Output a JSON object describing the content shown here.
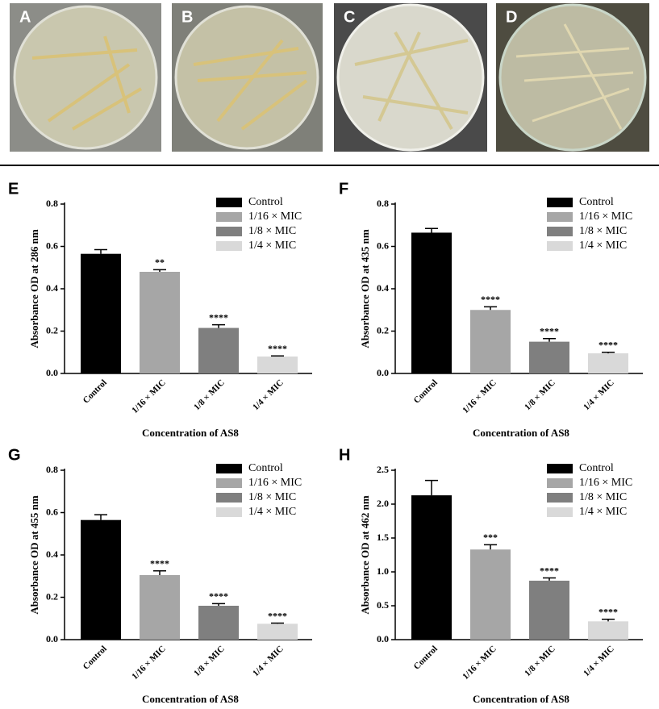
{
  "photo_panels": [
    "A",
    "B",
    "C",
    "D"
  ],
  "chart_data": [
    {
      "type": "bar",
      "panel": "E",
      "ylabel": "Absorbance OD at 286 nm",
      "xlabel": "Concentration of AS8",
      "categories": [
        "Control",
        "1/16 × MIC",
        "1/8 × MIC",
        "1/4 × MIC"
      ],
      "values": [
        0.565,
        0.48,
        0.215,
        0.08
      ],
      "errors": [
        0.02,
        0.01,
        0.015,
        0.003
      ],
      "annotations": [
        null,
        "**",
        "****",
        "****"
      ],
      "colors": [
        "#000000",
        "#a6a6a6",
        "#7f7f7f",
        "#d9d9d9"
      ],
      "ylim": [
        0,
        0.8
      ],
      "yticks": [
        {
          "value": 0,
          "label": "0.0"
        },
        0.2,
        0.4,
        0.6,
        0.8
      ],
      "legend": "upper right"
    },
    {
      "type": "bar",
      "panel": "F",
      "ylabel": "Absorbance OD at 435 nm",
      "xlabel": "Concentration of AS8",
      "categories": [
        "Control",
        "1/16 × MIC",
        "1/8 × MIC",
        "1/4 × MIC"
      ],
      "values": [
        0.665,
        0.3,
        0.15,
        0.095
      ],
      "errors": [
        0.02,
        0.015,
        0.015,
        0.005
      ],
      "annotations": [
        null,
        "****",
        "****",
        "****"
      ],
      "colors": [
        "#000000",
        "#a6a6a6",
        "#7f7f7f",
        "#d9d9d9"
      ],
      "ylim": [
        0,
        0.8
      ],
      "yticks": [
        {
          "value": 0,
          "label": "0.0"
        },
        0.2,
        0.4,
        0.6,
        0.8
      ],
      "legend": "upper right"
    },
    {
      "type": "bar",
      "panel": "G",
      "ylabel": "Absorbance OD at 455 nm",
      "xlabel": "Concentration of AS8",
      "categories": [
        "Control",
        "1/16 × MIC",
        "1/8 × MIC",
        "1/4 × MIC"
      ],
      "values": [
        0.565,
        0.305,
        0.16,
        0.075
      ],
      "errors": [
        0.025,
        0.02,
        0.01,
        0.003
      ],
      "annotations": [
        null,
        "****",
        "****",
        "****"
      ],
      "colors": [
        "#000000",
        "#a6a6a6",
        "#7f7f7f",
        "#d9d9d9"
      ],
      "ylim": [
        0,
        0.8
      ],
      "yticks": [
        {
          "value": 0,
          "label": "0.0"
        },
        0.2,
        0.4,
        0.6,
        0.8
      ],
      "legend": "upper right"
    },
    {
      "type": "bar",
      "panel": "H",
      "ylabel": "Absorbance OD at 462 nm",
      "xlabel": "Concentration of AS8",
      "categories": [
        "Control",
        "1/16 × MIC",
        "1/8 × MIC",
        "1/4 × MIC"
      ],
      "values": [
        2.13,
        1.33,
        0.87,
        0.27
      ],
      "errors": [
        0.22,
        0.07,
        0.04,
        0.03
      ],
      "annotations": [
        null,
        "***",
        "****",
        "****"
      ],
      "colors": [
        "#000000",
        "#a6a6a6",
        "#7f7f7f",
        "#d9d9d9"
      ],
      "ylim": [
        0,
        2.5
      ],
      "yticks": [
        {
          "value": 0,
          "label": "0.0"
        },
        {
          "value": 0.5,
          "label": "0.5"
        },
        {
          "value": 1,
          "label": "1.0"
        },
        {
          "value": 1.5,
          "label": "1.5"
        },
        {
          "value": 2,
          "label": "2.0"
        },
        {
          "value": 2.5,
          "label": "2.5"
        }
      ],
      "legend": "upper right"
    }
  ]
}
